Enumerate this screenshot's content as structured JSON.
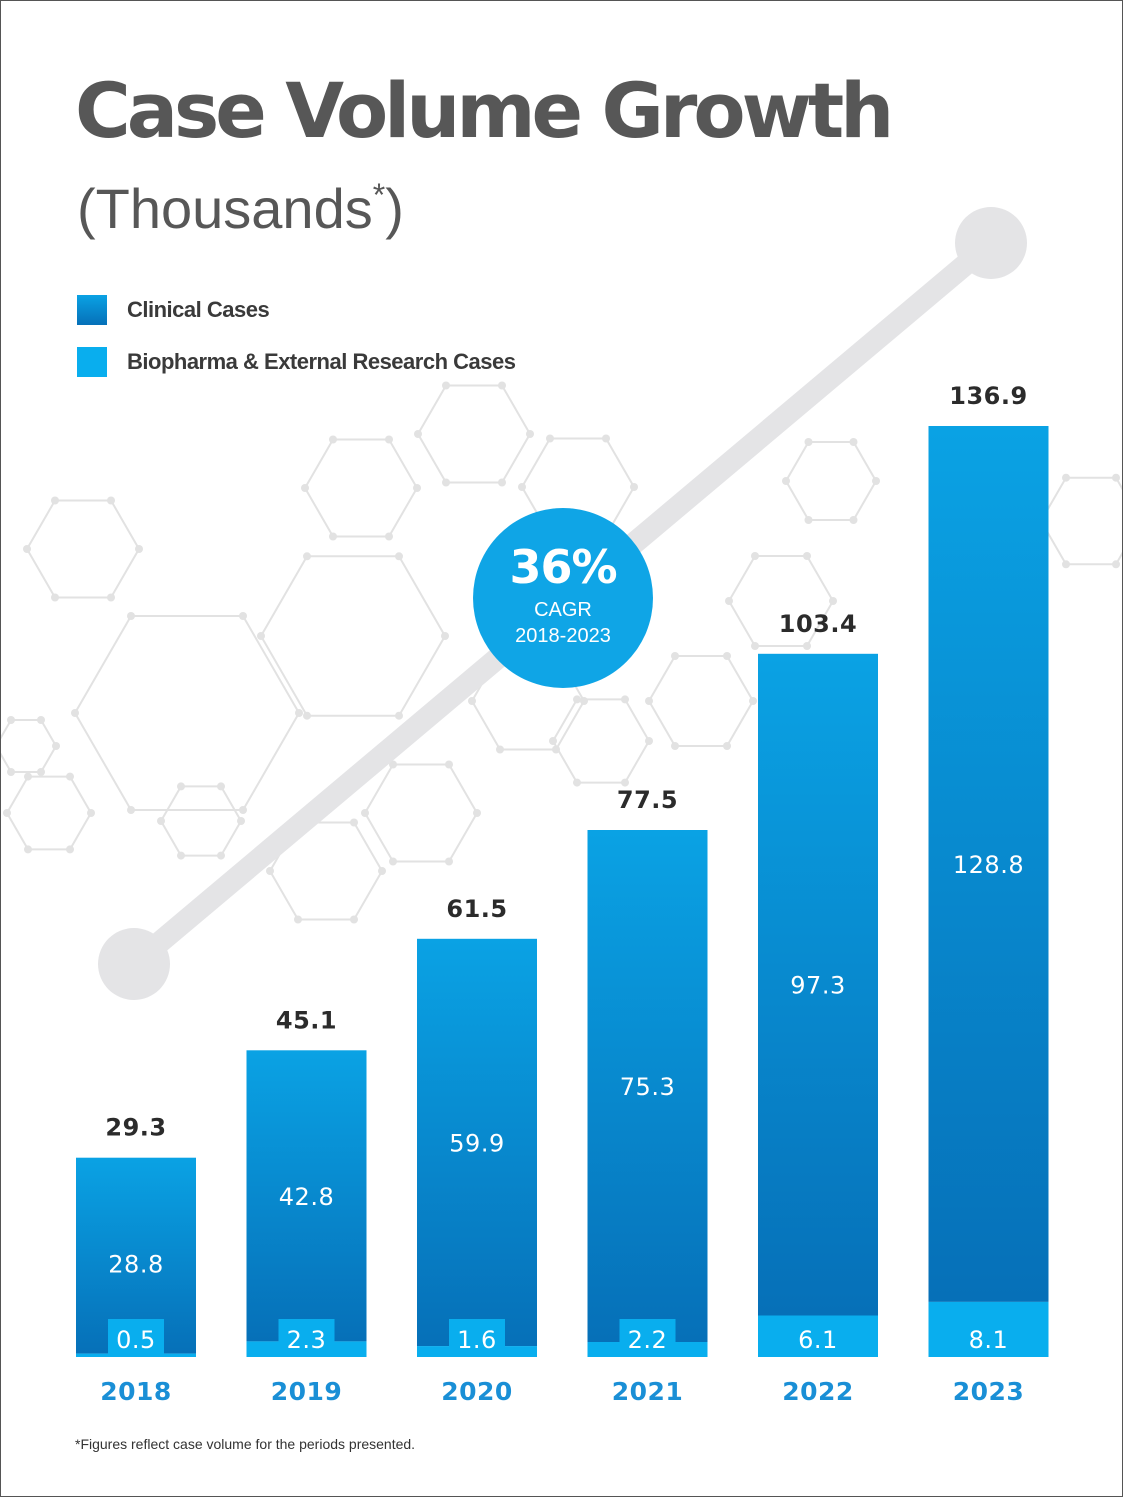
{
  "title": "Case Volume Growth",
  "subtitle": "(Thousands",
  "subtitle_mark": "*",
  "subtitle_close": ")",
  "legend": [
    {
      "label": "Clinical Cases",
      "color": "#0a74c0"
    },
    {
      "label": "Biopharma & External Research Cases",
      "color": "#09aeee"
    }
  ],
  "cagr": {
    "value": "36%",
    "label": "CAGR",
    "period": "2018-2023"
  },
  "footnote": "*Figures reflect case volume for the periods presented.",
  "colors": {
    "clinical_top": "#0aa2e4",
    "clinical_bottom": "#0670b8",
    "biopharma": "#09aeee",
    "badge": "#0fa5e6",
    "year_label": "#1a8fd6",
    "trend_line": "#e4e4e6",
    "hexagons": "#e2e2e2"
  },
  "chart_data": {
    "type": "bar",
    "stacked": true,
    "title": "Case Volume Growth",
    "subtitle": "(Thousands*)",
    "xlabel": "",
    "ylabel": "",
    "ylim": [
      0,
      136.9
    ],
    "categories": [
      "2018",
      "2019",
      "2020",
      "2021",
      "2022",
      "2023"
    ],
    "totals": [
      29.3,
      45.1,
      61.5,
      77.5,
      103.4,
      136.9
    ],
    "series": [
      {
        "name": "Biopharma & External Research Cases",
        "values": [
          0.5,
          2.3,
          1.6,
          2.2,
          6.1,
          8.1
        ]
      },
      {
        "name": "Clinical Cases",
        "values": [
          28.8,
          42.8,
          59.9,
          75.3,
          97.3,
          128.8
        ]
      }
    ]
  }
}
